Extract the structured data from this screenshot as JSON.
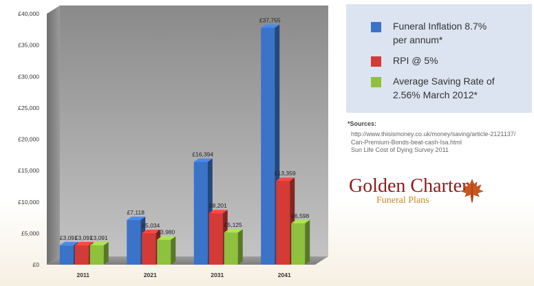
{
  "chart_data": {
    "type": "bar",
    "categories": [
      "2011",
      "2021",
      "2031",
      "2041"
    ],
    "series": [
      {
        "name": "Funeral Inflation 8.7% per annum*",
        "values": [
          3091,
          7118,
          16394,
          37755
        ],
        "labels": [
          "£3,091",
          "£7,118",
          "£16,394",
          "£37,755"
        ],
        "color": "#3a73c8"
      },
      {
        "name": "RPI @ 5%",
        "values": [
          3091,
          5034,
          8201,
          13359
        ],
        "labels": [
          "£3,091",
          "£5,034",
          "£8,201",
          "£13,359"
        ],
        "color": "#d43a36"
      },
      {
        "name": "Average Saving Rate of 2.56% March 2012*",
        "values": [
          3091,
          3980,
          5125,
          6598
        ],
        "labels": [
          "£3,091",
          "£3,980",
          "£5,125",
          "£6,598"
        ],
        "color": "#8ec13d"
      }
    ],
    "yticks": [
      "£0",
      "£5,000",
      "£10,000",
      "£15,000",
      "£20,000",
      "£25,000",
      "£30,000",
      "£35,000",
      "£40,000"
    ],
    "ylim": [
      0,
      40000
    ],
    "grid": false,
    "style": "3d"
  },
  "legend": {
    "items": [
      {
        "lines": [
          "Funeral Inflation 8.7%",
          "per annum*"
        ],
        "color": "#3a73c8"
      },
      {
        "lines": [
          "RPI @ 5%"
        ],
        "color": "#d43a36"
      },
      {
        "lines": [
          "Average Saving Rate of",
          "2.56% March 2012*"
        ],
        "color": "#8ec13d"
      }
    ]
  },
  "sources": {
    "title": "*Sources:",
    "lines": [
      "http://www.thisismoney.co.uk/money/saving/article-2121137/",
      "Can-Premium-Bonds-beat-cash-Isa.html",
      "Sun Life Cost of Dying Survey 2011"
    ]
  },
  "logo": {
    "title": "Golden Charter",
    "subtitle": "Funeral Plans",
    "title_color": "#8b1a1a",
    "subtitle_color": "#c9871f",
    "icon": "maple-leaf-icon"
  }
}
